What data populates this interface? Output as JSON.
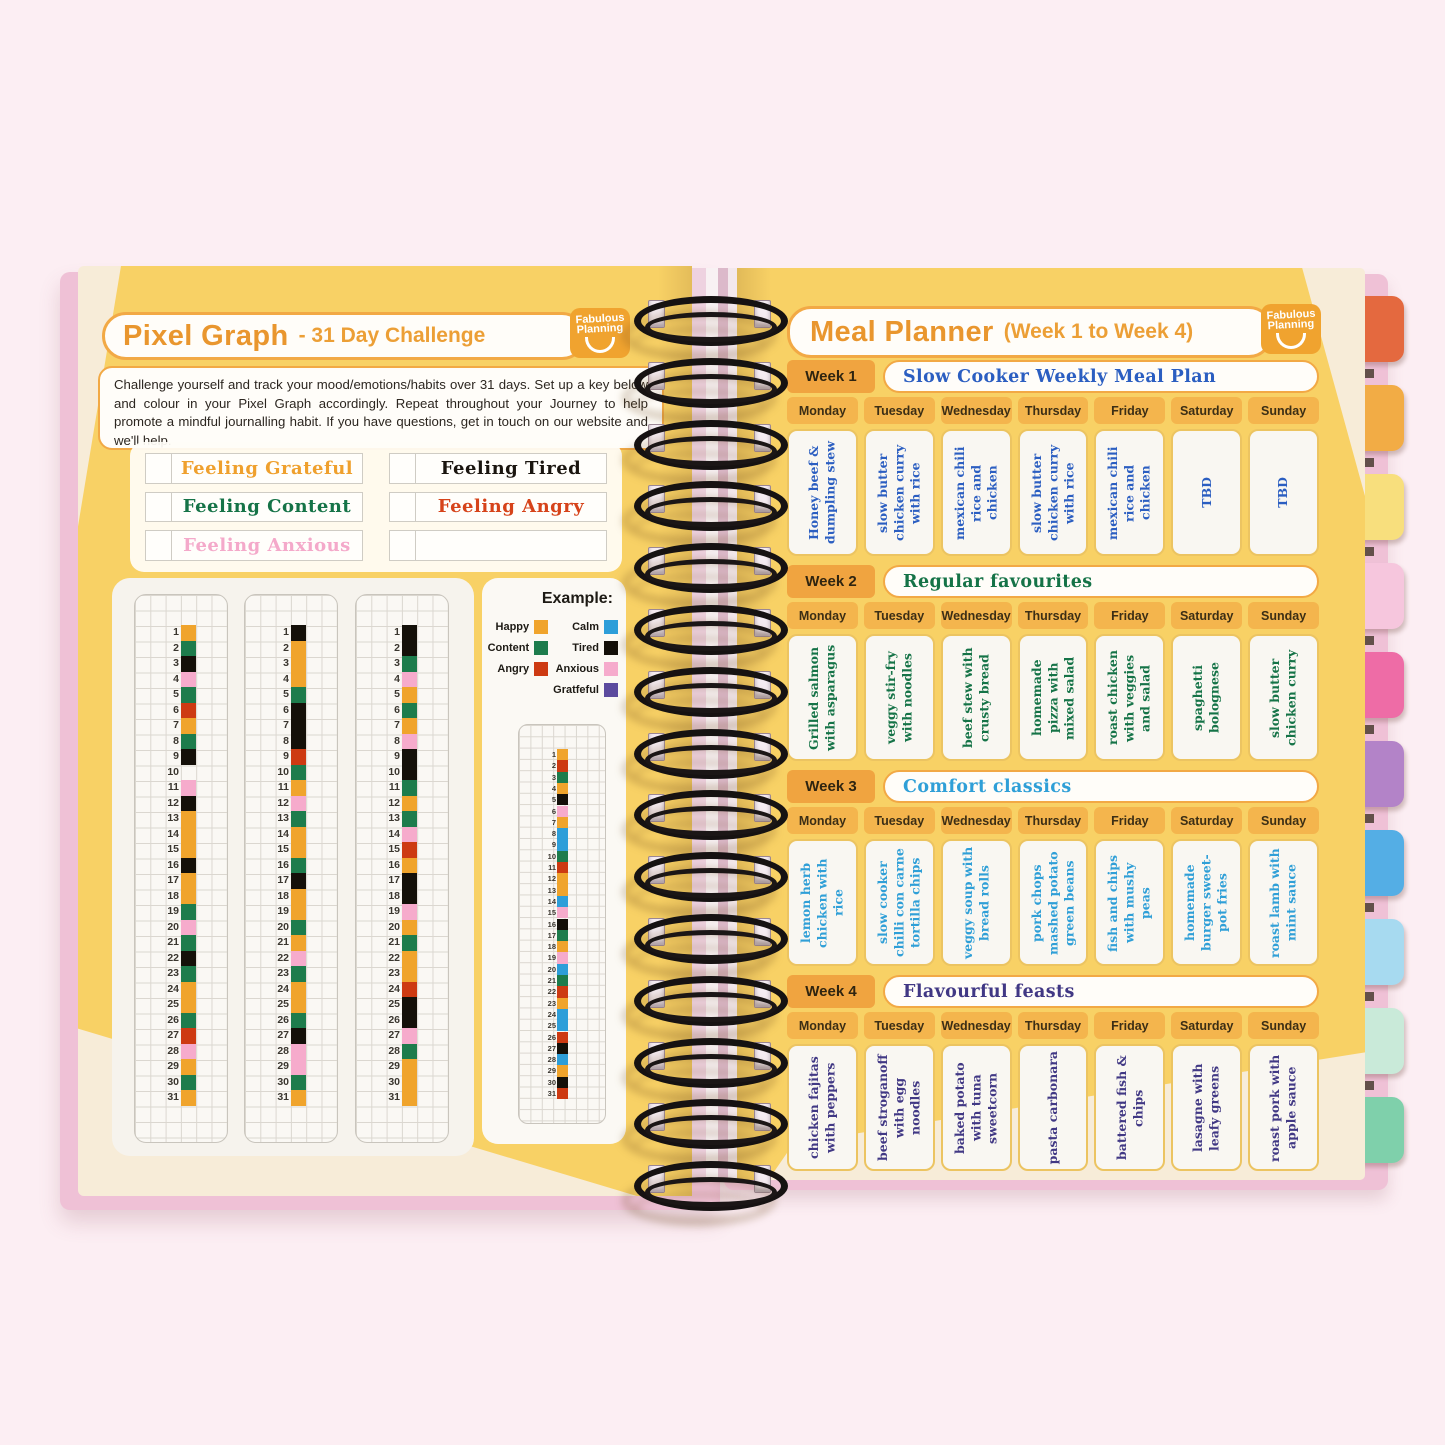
{
  "brand": {
    "line1": "Fabulous",
    "line2": "Planning"
  },
  "colors": {
    "background_pink": "#fceef3",
    "page_yellow": "#f8d165",
    "page_cream": "#f7ecd8",
    "cover_pink": "#efc1d6",
    "accent_orange": "#e9962e",
    "border_orange": "#f2a945",
    "week_label_bg": "#f0a440",
    "day_bg": "#f4b54d",
    "pixel": {
      "O": "#f0a42c",
      "G": "#1d7c4c",
      "K": "#141009",
      "P": "#f6abcc",
      "R": "#cd3a12",
      "B": "#2d9ed9",
      "V": "#5c4b9e",
      "_": ""
    }
  },
  "left_page": {
    "title": "Pixel Graph",
    "subtitle": "- 31 Day Challenge",
    "intro": "Challenge yourself and track your mood/emotions/habits over 31 days. Set up a key below and colour in your Pixel Graph accordingly. Repeat throughout your Journey to help promote a mindful journalling habit. If you have questions, get in touch on our website and we'll help.",
    "key_slots": [
      {
        "label": "Feeling Grateful",
        "color": "#efa02d"
      },
      {
        "label": "Feeling Content",
        "color": "#157347"
      },
      {
        "label": "Feeling Anxious",
        "color": "#f4a9ca"
      },
      {
        "label": "Feeling Tired",
        "color": "#1a150f"
      },
      {
        "label": "Feeling Angry",
        "color": "#d6431a"
      },
      {
        "label": "",
        "color": ""
      }
    ],
    "example_title": "Example:",
    "legend_left": [
      {
        "label": "Happy",
        "color": "#f0a42c"
      },
      {
        "label": "Content",
        "color": "#1d7c4c"
      },
      {
        "label": "Angry",
        "color": "#cd3a12"
      }
    ],
    "legend_right": [
      {
        "label": "Calm",
        "color": "#2d9ed9"
      },
      {
        "label": "Tired",
        "color": "#141009"
      },
      {
        "label": "Anxious",
        "color": "#f6abcc"
      },
      {
        "label": "Gratfeful",
        "color": "#5c4b9e"
      }
    ],
    "columns": [
      "OGKPGROGK_PKOOOKOOGPGKGOOGRPOGO",
      "KOOOGKKKRGOPGOOGKOOGOPGOOGKPPGO",
      "KKGPOGOPKKGOGPROKKPOGOORKKPGOOO"
    ],
    "example_column": "ORGOKPOBBGROOBPKGOPBGROBBRKBOKR"
  },
  "right_page": {
    "title": "Meal Planner",
    "subtitle": "(Week 1 to Week 4)",
    "days": [
      "Monday",
      "Tuesday",
      "Wednesday",
      "Thursday",
      "Friday",
      "Saturday",
      "Sunday"
    ],
    "weeks": [
      {
        "label": "Week 1",
        "title": "Slow Cooker Weekly Meal Plan",
        "color": "#2b5ec1",
        "meals": [
          "Honey beef & dumpling stew",
          "slow butter chicken curry with rice",
          "mexican chili rice and chicken",
          "slow butter chicken curry with rice",
          "mexican chili rice and chicken",
          "TBD",
          "TBD"
        ]
      },
      {
        "label": "Week 2",
        "title": "Regular favourites",
        "color": "#157347",
        "meals": [
          "Grilled salmon with asparagus",
          "veggy stir-fry with noodles",
          "beef stew with crusty bread",
          "homemade pizza with mixed salad",
          "roast chicken with veggies and salad",
          "spaghetti bolognese",
          "slow butter chicken curry"
        ]
      },
      {
        "label": "Week 3",
        "title": "Comfort classics",
        "color": "#2f9fd7",
        "meals": [
          "lemon herb chicken with rice",
          "slow cooker chilli con carne tortilla chips",
          "veggy soup with bread rolls",
          "pork chops mashed potato green beans",
          "fish and chips with mushy peas",
          "homemade burger sweet-pot fries",
          "roast lamb with mint sauce"
        ]
      },
      {
        "label": "Week 4",
        "title": "Flavourful feasts",
        "color": "#413884",
        "meals": [
          "chicken fajitas with peppers",
          "beef stroganoff with egg noodles",
          "baked potato with tuna sweetcorn",
          "pasta carbonara",
          "battered fish & chips",
          "lasagne with leafy greens",
          "roast pork with apple sauce"
        ]
      }
    ]
  },
  "tabs": [
    "#e4693f",
    "#f2ac45",
    "#f8df7d",
    "#f6c6dd",
    "#ee6ca6",
    "#b383c8",
    "#54aee5",
    "#a7daf0",
    "#c9ead9",
    "#7fd0ab"
  ]
}
